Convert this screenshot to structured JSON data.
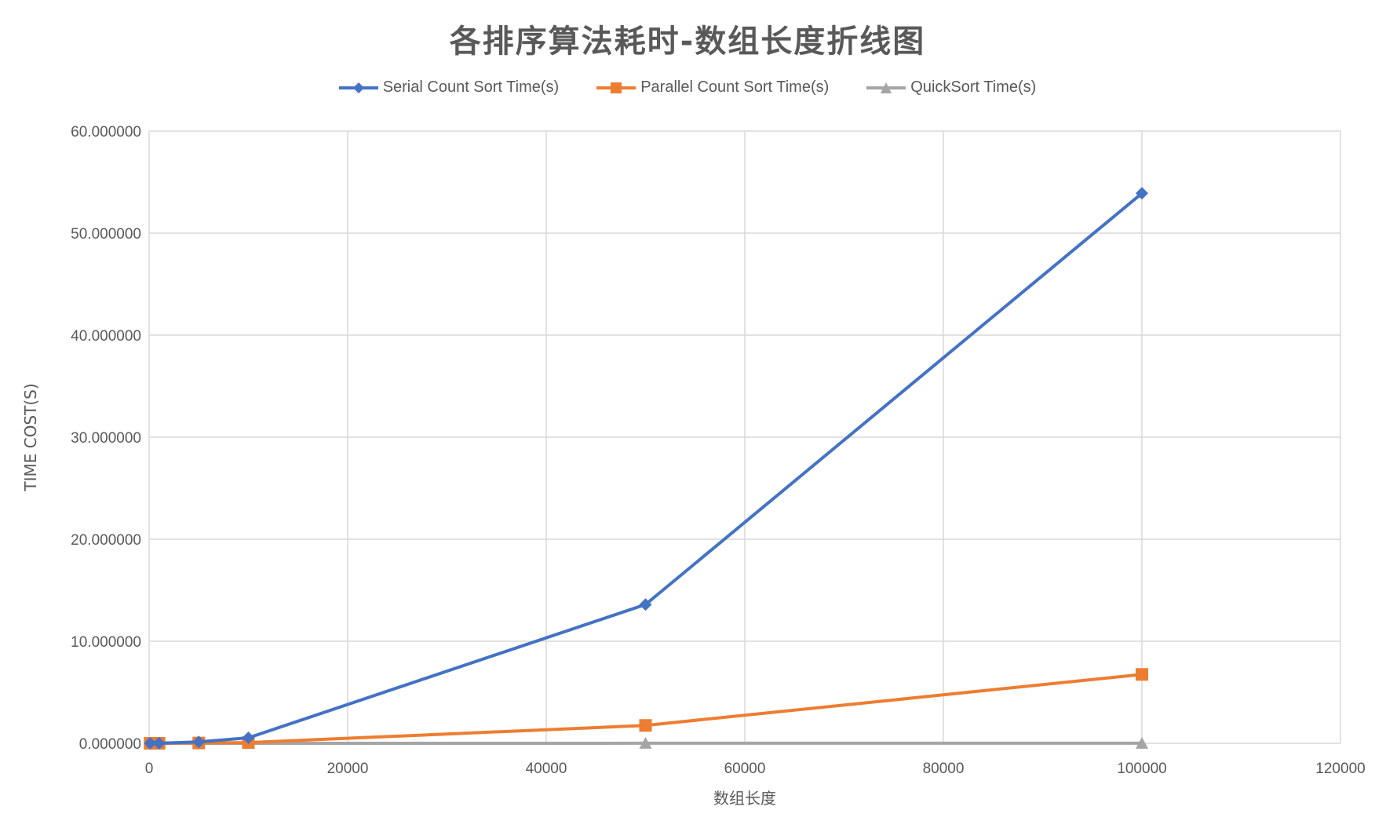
{
  "chart_data": {
    "type": "line",
    "title": "各排序算法耗时-数组长度折线图",
    "xlabel": "数组长度",
    "ylabel": "TIME COST(S)",
    "xlim": [
      0,
      120000
    ],
    "ylim": [
      0,
      60
    ],
    "x_ticks": [
      "0",
      "20000",
      "40000",
      "60000",
      "80000",
      "100000",
      "120000"
    ],
    "y_ticks": [
      "0.000000",
      "10.000000",
      "20.000000",
      "30.000000",
      "40.000000",
      "50.000000",
      "60.000000"
    ],
    "grid": true,
    "legend_position": "top",
    "x": [
      100,
      1000,
      5000,
      10000,
      50000,
      100000
    ],
    "series": [
      {
        "name": "Serial Count Sort Time(s)",
        "color": "#4472C4",
        "marker": "diamond",
        "values": [
          0.0,
          0.005,
          0.135,
          0.54,
          13.6,
          53.9
        ]
      },
      {
        "name": "Parallel Count Sort Time(s)",
        "color": "#ED7D31",
        "marker": "square",
        "values": [
          0.0,
          0.001,
          0.03,
          0.07,
          1.75,
          6.75
        ]
      },
      {
        "name": "QuickSort Time(s)",
        "color": "#A5A5A5",
        "marker": "triangle",
        "values": [
          0.0,
          0.0001,
          0.0005,
          0.001,
          0.005,
          0.011
        ]
      }
    ]
  }
}
